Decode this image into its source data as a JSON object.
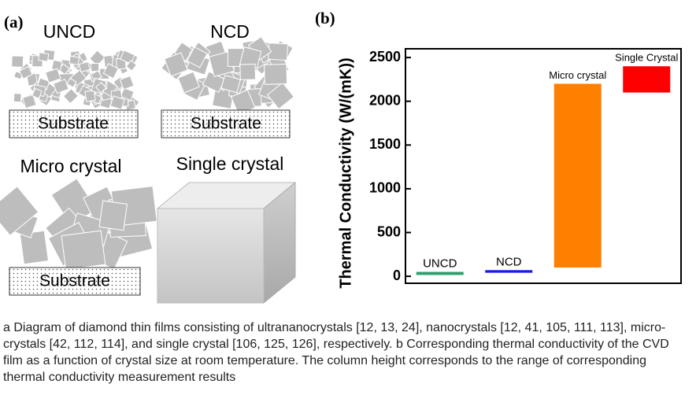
{
  "panel_a": {
    "label": "(a)",
    "items": [
      {
        "title": "UNCD",
        "substrate": "Substrate"
      },
      {
        "title": "NCD",
        "substrate": "Substrate"
      },
      {
        "title": "Micro crystal",
        "substrate": "Substrate"
      },
      {
        "title": "Single crystal"
      }
    ]
  },
  "chart_data": {
    "type": "range-bar",
    "panel_label": "(b)",
    "y_label": "Thermal Conductivity (W/(mK))",
    "categories": [
      "UNCD",
      "NCD",
      "Micro crystal",
      "Single Crystal"
    ],
    "low": [
      15,
      40,
      100,
      2100
    ],
    "high": [
      50,
      70,
      2200,
      2400
    ],
    "colors": [
      "#2e9e6e",
      "#1a1ae6",
      "#ff8000",
      "#ff0000"
    ],
    "ylim": [
      -80,
      2600
    ],
    "yticks": [
      0,
      500,
      1000,
      1500,
      2000,
      2500
    ]
  },
  "caption": "a Diagram of diamond thin films consisting of ultrananocrystals [12, 13, 24], nanocrystals [12, 41, 105, 111, 113], micro-crystals [42, 112, 114], and single crystal [106, 125, 126], respectively. b Corresponding thermal conductivity of the CVD film as a function of crystal size at room temperature. The column height corresponds to the range of corresponding thermal conductivity measurement results"
}
